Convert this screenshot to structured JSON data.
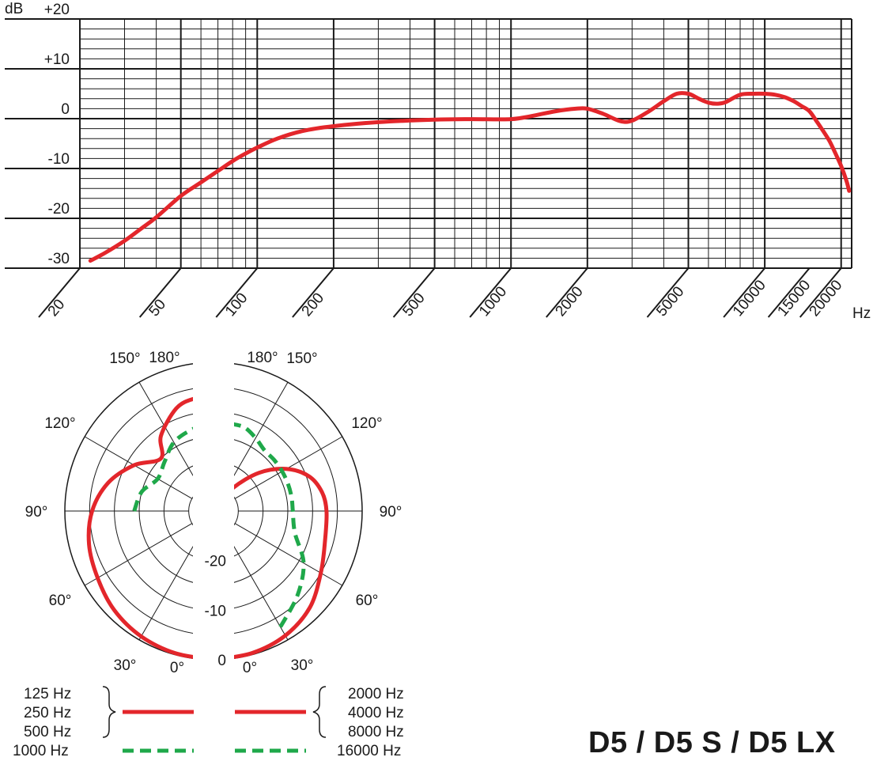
{
  "model_title": "D5 / D5 S / D5 LX",
  "colors": {
    "red": "#e3262b",
    "green": "#1fa84a",
    "grid": "#1a1a1a"
  },
  "chart_data": [
    {
      "type": "line",
      "name": "frequency-response",
      "xscale": "log",
      "xlim": [
        20,
        22000
      ],
      "ylim": [
        -30,
        20
      ],
      "ylabel": "dB",
      "xlabel": "Hz",
      "x_ticks": [
        "20",
        "50",
        "100",
        "200",
        "500",
        "1000",
        "2000",
        "5000",
        "10000",
        "15000",
        "20000"
      ],
      "y_ticks": [
        "+20",
        "+10",
        "0",
        "-10",
        "-20",
        "-30"
      ],
      "grid": true,
      "series": [
        {
          "color": "#e3262b",
          "x": [
            22,
            25,
            30,
            35,
            40,
            50,
            60,
            70,
            80,
            90,
            100,
            120,
            150,
            200,
            300,
            500,
            700,
            1000,
            1200,
            1500,
            1800,
            2000,
            2300,
            2700,
            3000,
            3500,
            4000,
            4500,
            5000,
            5500,
            6000,
            6500,
            7000,
            8000,
            9000,
            10000,
            11000,
            12000,
            13000,
            14000,
            15000,
            16000,
            17000,
            18000,
            19000,
            20000,
            21000,
            21500
          ],
          "y": [
            -28.5,
            -27,
            -24.5,
            -22,
            -19.8,
            -15.5,
            -12.8,
            -10.5,
            -8.5,
            -7,
            -5.8,
            -4,
            -2.5,
            -1.5,
            -0.7,
            -0.2,
            -0.1,
            -0.1,
            0.5,
            1.5,
            2,
            2,
            1,
            -0.5,
            -0.4,
            1.5,
            3.5,
            5,
            5,
            4,
            3.2,
            3,
            3.3,
            4.8,
            5,
            5,
            4.8,
            4.3,
            3.5,
            2.5,
            1.5,
            -0.5,
            -2.5,
            -4.5,
            -7,
            -9.5,
            -12.5,
            -14.5
          ]
        }
      ]
    },
    {
      "type": "polar",
      "name": "polar-pattern",
      "angle_labels": [
        "0°",
        "30°",
        "60°",
        "90°",
        "120°",
        "150°",
        "180°"
      ],
      "radial_labels": [
        "0",
        "-10",
        "-20"
      ],
      "rlim": [
        -30,
        0
      ],
      "series": [
        {
          "group": "left",
          "style": "solid",
          "color": "#e3262b",
          "angles": [
            0,
            15,
            30,
            45,
            60,
            75,
            90,
            105,
            120,
            135,
            145,
            160,
            170,
            180
          ],
          "values": [
            0,
            -0.3,
            -0.8,
            -1.7,
            -3,
            -4,
            -5.5,
            -8,
            -11.5,
            -15,
            -11.5,
            -8,
            -7,
            -7
          ]
        },
        {
          "group": "left",
          "style": "dashed",
          "color": "#1fa84a",
          "angles": [
            90,
            105,
            120,
            135,
            150,
            165,
            180
          ],
          "values": [
            -14,
            -15,
            -17,
            -16,
            -14,
            -13,
            -12
          ]
        },
        {
          "group": "right",
          "style": "solid",
          "color": "#e3262b",
          "angles": [
            0,
            15,
            30,
            45,
            60,
            75,
            90,
            100,
            110,
            120,
            130,
            140,
            150,
            160,
            170,
            180
          ],
          "values": [
            0,
            -0.3,
            -1,
            -2.5,
            -5,
            -6.7,
            -7.2,
            -7.8,
            -9.5,
            -13,
            -18,
            -24,
            -29,
            -24,
            -20,
            -20
          ]
        },
        {
          "group": "right",
          "style": "dashed",
          "color": "#1fa84a",
          "angles": [
            30,
            45,
            60,
            75,
            90,
            100,
            110,
            120,
            130,
            140,
            150,
            160,
            170,
            180
          ],
          "values": [
            -3,
            -6,
            -9,
            -13,
            -14,
            -14,
            -14,
            -14,
            -14,
            -14,
            -13,
            -12,
            -12,
            -11
          ]
        }
      ]
    }
  ],
  "legend": {
    "left_solid": [
      "125 Hz",
      "250 Hz",
      "500 Hz"
    ],
    "left_dashed": "1000 Hz",
    "right_solid": [
      "2000 Hz",
      "4000 Hz",
      "8000 Hz"
    ],
    "right_dashed": "16000 Hz"
  }
}
